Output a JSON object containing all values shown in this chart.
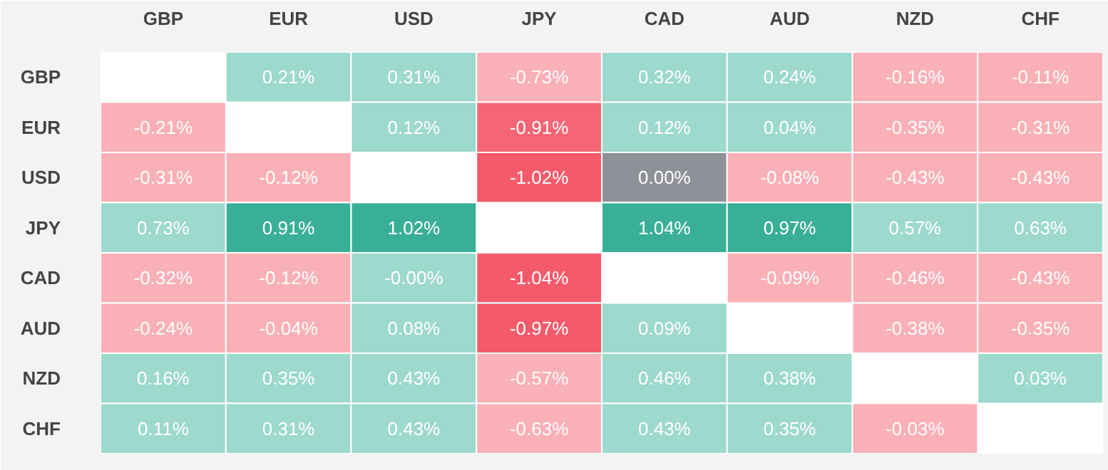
{
  "chart_data": {
    "type": "heatmap",
    "categories": [
      "GBP",
      "EUR",
      "USD",
      "JPY",
      "CAD",
      "AUD",
      "NZD",
      "CHF"
    ],
    "y_categories": [
      "GBP",
      "EUR",
      "USD",
      "JPY",
      "CAD",
      "AUD",
      "NZD",
      "CHF"
    ],
    "cells": [
      [
        null,
        0.21,
        0.31,
        -0.73,
        0.32,
        0.24,
        -0.16,
        -0.11
      ],
      [
        -0.21,
        null,
        0.12,
        -0.91,
        0.12,
        0.04,
        -0.35,
        -0.31
      ],
      [
        -0.31,
        -0.12,
        null,
        -1.02,
        0.0,
        -0.08,
        -0.43,
        -0.43
      ],
      [
        0.73,
        0.91,
        1.02,
        null,
        1.04,
        0.97,
        0.57,
        0.63
      ],
      [
        -0.32,
        -0.12,
        -0.0,
        -1.04,
        null,
        -0.09,
        -0.46,
        -0.43
      ],
      [
        -0.24,
        -0.04,
        0.08,
        -0.97,
        0.09,
        null,
        -0.38,
        -0.35
      ],
      [
        0.16,
        0.35,
        0.43,
        -0.57,
        0.46,
        0.38,
        null,
        0.03
      ],
      [
        0.11,
        0.31,
        0.43,
        -0.63,
        0.43,
        0.35,
        -0.03,
        null
      ]
    ],
    "cell_labels": [
      [
        null,
        "0.21%",
        "0.31%",
        "-0.73%",
        "0.32%",
        "0.24%",
        "-0.16%",
        "-0.11%"
      ],
      [
        "-0.21%",
        null,
        "0.12%",
        "-0.91%",
        "0.12%",
        "0.04%",
        "-0.35%",
        "-0.31%"
      ],
      [
        "-0.31%",
        "-0.12%",
        null,
        "-1.02%",
        "0.00%",
        "-0.08%",
        "-0.43%",
        "-0.43%"
      ],
      [
        "0.73%",
        "0.91%",
        "1.02%",
        null,
        "1.04%",
        "0.97%",
        "0.57%",
        "0.63%"
      ],
      [
        "-0.32%",
        "-0.12%",
        "-0.00%",
        "-1.04%",
        null,
        "-0.09%",
        "-0.46%",
        "-0.43%"
      ],
      [
        "-0.24%",
        "-0.04%",
        "0.08%",
        "-0.97%",
        "0.09%",
        null,
        "-0.38%",
        "-0.35%"
      ],
      [
        "0.16%",
        "0.35%",
        "0.43%",
        "-0.57%",
        "0.46%",
        "0.38%",
        null,
        "0.03%"
      ],
      [
        "0.11%",
        "0.31%",
        "0.43%",
        "-0.63%",
        "0.43%",
        "0.35%",
        "-0.03%",
        null
      ]
    ],
    "colors": [
      [
        null,
        "#9dd9cd",
        "#9dd9cd",
        "#f9b0b6",
        "#9dd9cd",
        "#9dd9cd",
        "#f9b0b6",
        "#f9b0b6"
      ],
      [
        "#f9b0b6",
        null,
        "#9dd9cd",
        "#f66574",
        "#9dd9cd",
        "#9dd9cd",
        "#f9b0b6",
        "#f9b0b6"
      ],
      [
        "#f9b0b6",
        "#f9b0b6",
        null,
        "#f55a6b",
        "#8f9198",
        "#f9b0b6",
        "#f9b0b6",
        "#f9b0b6"
      ],
      [
        "#9dd9cd",
        "#3aaf98",
        "#3aaf98",
        null,
        "#3aaf98",
        "#3aaf98",
        "#9dd9cd",
        "#9dd9cd"
      ],
      [
        "#f9b0b6",
        "#f9b0b6",
        "#9dd9cd",
        "#f55a6b",
        null,
        "#f9b0b6",
        "#f9b0b6",
        "#f9b0b6"
      ],
      [
        "#f9b0b6",
        "#f9b0b6",
        "#9dd9cd",
        "#f55a6b",
        "#9dd9cd",
        null,
        "#f9b0b6",
        "#f9b0b6"
      ],
      [
        "#9dd9cd",
        "#9dd9cd",
        "#9dd9cd",
        "#f9b0b6",
        "#9dd9cd",
        "#9dd9cd",
        null,
        "#9dd9cd"
      ],
      [
        "#9dd9cd",
        "#9dd9cd",
        "#9dd9cd",
        "#f9b0b6",
        "#9dd9cd",
        "#9dd9cd",
        "#f9b0b6",
        null
      ]
    ]
  }
}
